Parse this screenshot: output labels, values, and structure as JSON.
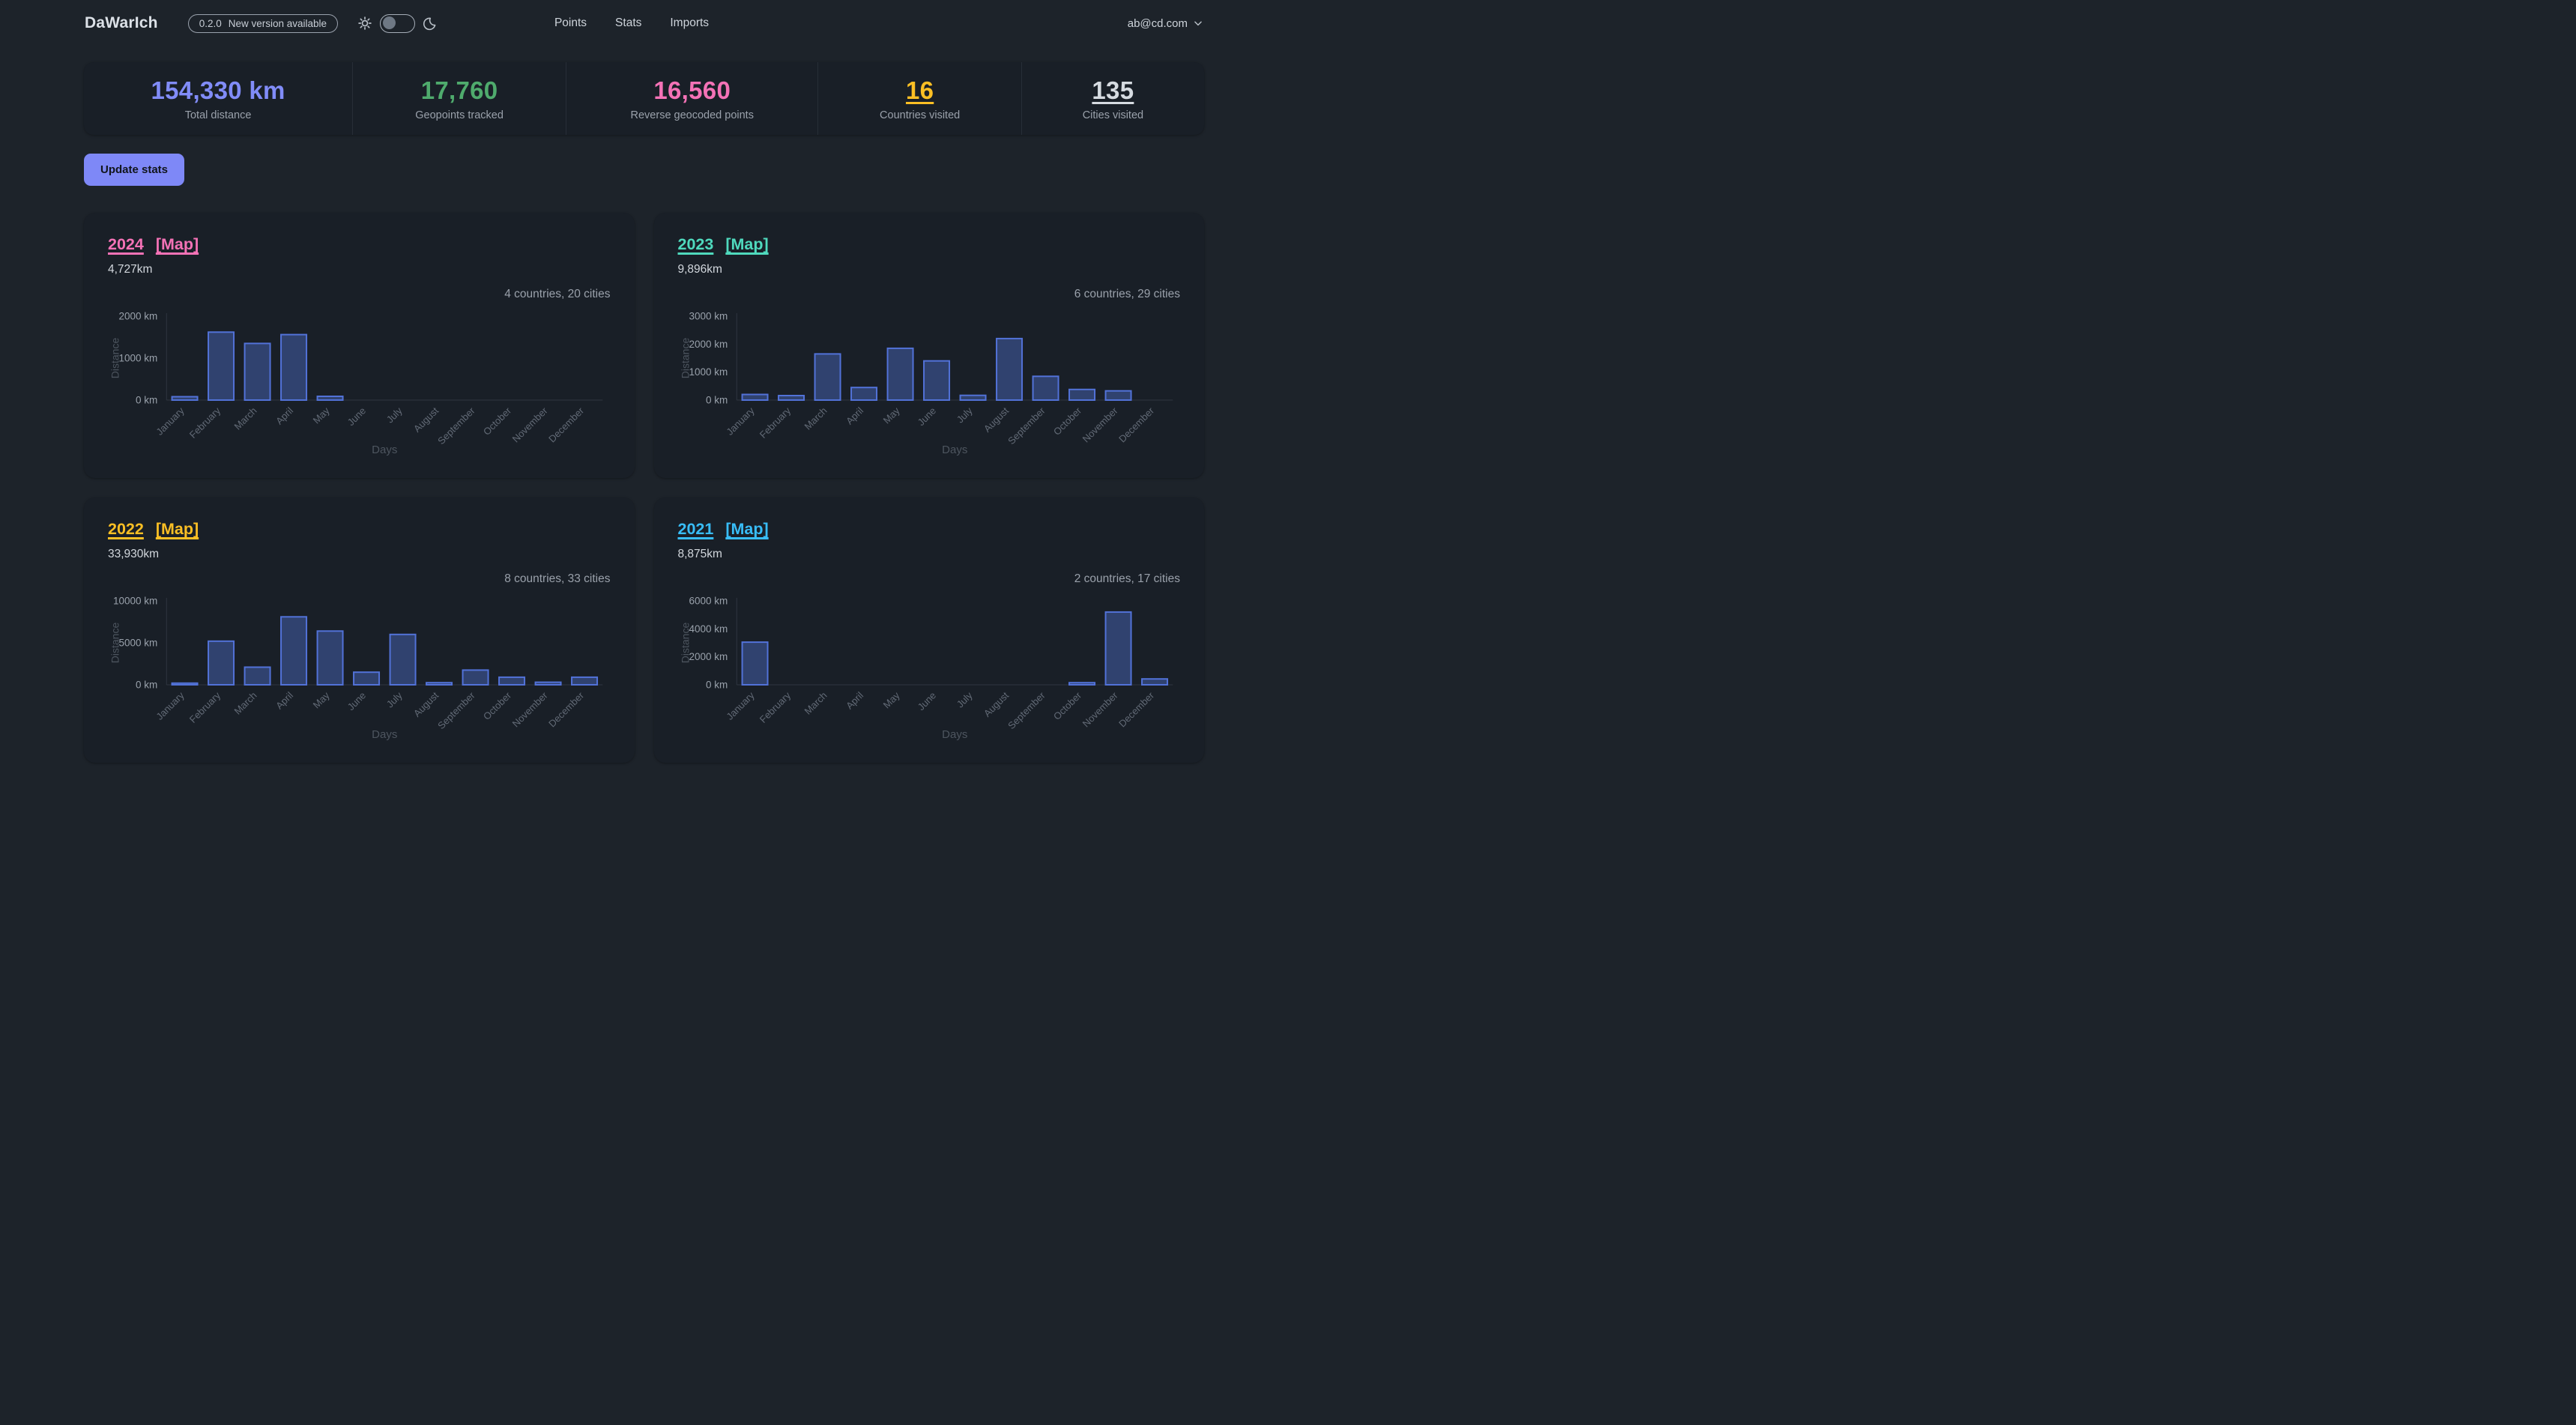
{
  "header": {
    "logo": "DaWarIch",
    "version_badge": {
      "version": "0.2.0",
      "note": "New version available"
    },
    "nav": {
      "points": "Points",
      "stats": "Stats",
      "imports": "Imports"
    },
    "user_email": "ab@cd.com"
  },
  "theme": {
    "page_bg": "#1d232a",
    "panel_bg": "#191f27",
    "bar_fill": "#30426f",
    "bar_border": "#5272d8"
  },
  "stats_overview": {
    "items": [
      {
        "value": "154,330 km",
        "label": "Total distance",
        "color": "#818cf8",
        "link": false
      },
      {
        "value": "17,760",
        "label": "Geopoints tracked",
        "color": "#4fab6d",
        "link": false
      },
      {
        "value": "16,560",
        "label": "Reverse geocoded points",
        "color": "#f472b6",
        "link": false
      },
      {
        "value": "16",
        "label": "Countries visited",
        "color": "#fbbf24",
        "link": true
      },
      {
        "value": "135",
        "label": "Cities visited",
        "color": "#d6dbe1",
        "link": true
      }
    ]
  },
  "actions": {
    "update_stats": "Update stats"
  },
  "cards": [
    {
      "year": "2024",
      "map_link": "[Map]",
      "accent": "#f472b6",
      "distance": "4,727km",
      "summary": "4 countries, 20 cities"
    },
    {
      "year": "2023",
      "map_link": "[Map]",
      "accent": "#4fd9bd",
      "distance": "9,896km",
      "summary": "6 countries, 29 cities"
    },
    {
      "year": "2022",
      "map_link": "[Map]",
      "accent": "#fbbf24",
      "distance": "33,930km",
      "summary": "8 countries, 33 cities"
    },
    {
      "year": "2021",
      "map_link": "[Map]",
      "accent": "#38bdf8",
      "distance": "8,875km",
      "summary": "2 countries, 17 cities"
    }
  ],
  "chart_data": [
    {
      "type": "bar",
      "title": "2024 monthly distance",
      "categories": [
        "January",
        "February",
        "March",
        "April",
        "May",
        "June",
        "July",
        "August",
        "September",
        "October",
        "November",
        "December"
      ],
      "values": [
        80,
        1620,
        1350,
        1560,
        90,
        0,
        0,
        0,
        0,
        0,
        0,
        0
      ],
      "xlabel": "Days",
      "ylabel": "Distance",
      "ylim": [
        0,
        2000
      ],
      "yticks": [
        0,
        1000,
        2000
      ],
      "tick_suffix": " km",
      "grid": false,
      "legend": false
    },
    {
      "type": "bar",
      "title": "2023 monthly distance",
      "categories": [
        "January",
        "February",
        "March",
        "April",
        "May",
        "June",
        "July",
        "August",
        "September",
        "October",
        "November",
        "December"
      ],
      "values": [
        200,
        160,
        1650,
        450,
        1850,
        1400,
        170,
        2200,
        850,
        380,
        330,
        0
      ],
      "xlabel": "Days",
      "ylabel": "Distance",
      "ylim": [
        0,
        3000
      ],
      "yticks": [
        0,
        1000,
        2000,
        3000
      ],
      "tick_suffix": " km",
      "grid": false,
      "legend": false
    },
    {
      "type": "bar",
      "title": "2022 monthly distance",
      "categories": [
        "January",
        "February",
        "March",
        "April",
        "May",
        "June",
        "July",
        "August",
        "September",
        "October",
        "November",
        "December"
      ],
      "values": [
        200,
        5200,
        2100,
        8100,
        6400,
        1500,
        6000,
        250,
        1750,
        900,
        300,
        900
      ],
      "xlabel": "Days",
      "ylabel": "Distance",
      "ylim": [
        0,
        10000
      ],
      "yticks": [
        0,
        5000,
        10000
      ],
      "tick_suffix": " km",
      "grid": false,
      "legend": false
    },
    {
      "type": "bar",
      "title": "2021 monthly distance",
      "categories": [
        "January",
        "February",
        "March",
        "April",
        "May",
        "June",
        "July",
        "August",
        "September",
        "October",
        "November",
        "December"
      ],
      "values": [
        3050,
        0,
        0,
        0,
        0,
        0,
        0,
        0,
        0,
        150,
        5200,
        420
      ],
      "xlabel": "Days",
      "ylabel": "Distance",
      "ylim": [
        0,
        6000
      ],
      "yticks": [
        0,
        2000,
        4000,
        6000
      ],
      "tick_suffix": " km",
      "grid": false,
      "legend": false
    }
  ]
}
